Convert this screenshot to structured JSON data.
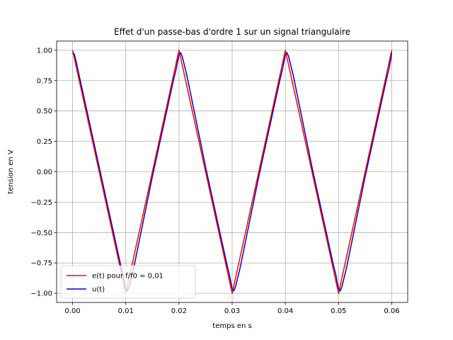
{
  "chart_data": {
    "type": "line",
    "title": "Effet d'un passe-bas d'ordre 1 sur un signal triangulaire",
    "xlabel": "temps en s",
    "ylabel": "tension en V",
    "xlim": [
      -0.003,
      0.063
    ],
    "ylim": [
      -1.075,
      1.075
    ],
    "xticks": [
      0.0,
      0.01,
      0.02,
      0.03,
      0.04,
      0.05,
      0.06
    ],
    "xtick_labels": [
      "0.00",
      "0.01",
      "0.02",
      "0.03",
      "0.04",
      "0.05",
      "0.06"
    ],
    "yticks": [
      -1.0,
      -0.75,
      -0.5,
      -0.25,
      0.0,
      0.25,
      0.5,
      0.75,
      1.0
    ],
    "ytick_labels": [
      "−1.00",
      "−0.75",
      "−0.50",
      "−0.25",
      "0.00",
      "0.25",
      "0.50",
      "0.75",
      "1.00"
    ],
    "grid": true,
    "legend_position": "lower-left",
    "series": [
      {
        "name": "e(t) pour f/f0 = 0,01",
        "color": "#ff0000",
        "x": [
          0.0,
          0.01,
          0.02,
          0.03,
          0.04,
          0.05,
          0.06
        ],
        "y": [
          1.0,
          -1.0,
          1.0,
          -1.0,
          1.0,
          -1.0,
          1.0
        ]
      },
      {
        "name": " u(t)",
        "color": "#0000cc",
        "x": [
          0.0,
          0.0003,
          0.0006,
          0.0015,
          0.005,
          0.009,
          0.0095,
          0.0098,
          0.01,
          0.0103,
          0.0106,
          0.0115,
          0.015,
          0.019,
          0.0195,
          0.0198,
          0.02,
          0.0203,
          0.0206,
          0.0215,
          0.025,
          0.029,
          0.0295,
          0.0298,
          0.03,
          0.0303,
          0.0306,
          0.0315,
          0.035,
          0.039,
          0.0395,
          0.0398,
          0.04,
          0.0403,
          0.0406,
          0.0415,
          0.045,
          0.049,
          0.0495,
          0.0498,
          0.05,
          0.0503,
          0.0506,
          0.0515,
          0.055,
          0.059,
          0.0595,
          0.0598,
          0.06
        ],
        "y": [
          0.98,
          0.97,
          0.92,
          0.74,
          0.04,
          -0.76,
          -0.85,
          -0.92,
          -0.96,
          -0.98,
          -0.95,
          -0.79,
          -0.04,
          0.76,
          0.85,
          0.92,
          0.96,
          0.98,
          0.95,
          0.79,
          0.04,
          -0.76,
          -0.85,
          -0.92,
          -0.96,
          -0.98,
          -0.95,
          -0.79,
          -0.04,
          0.76,
          0.85,
          0.92,
          0.96,
          0.98,
          0.95,
          0.79,
          0.04,
          -0.76,
          -0.85,
          -0.92,
          -0.96,
          -0.98,
          -0.95,
          -0.79,
          -0.04,
          0.76,
          0.85,
          0.92,
          0.98
        ]
      }
    ]
  }
}
